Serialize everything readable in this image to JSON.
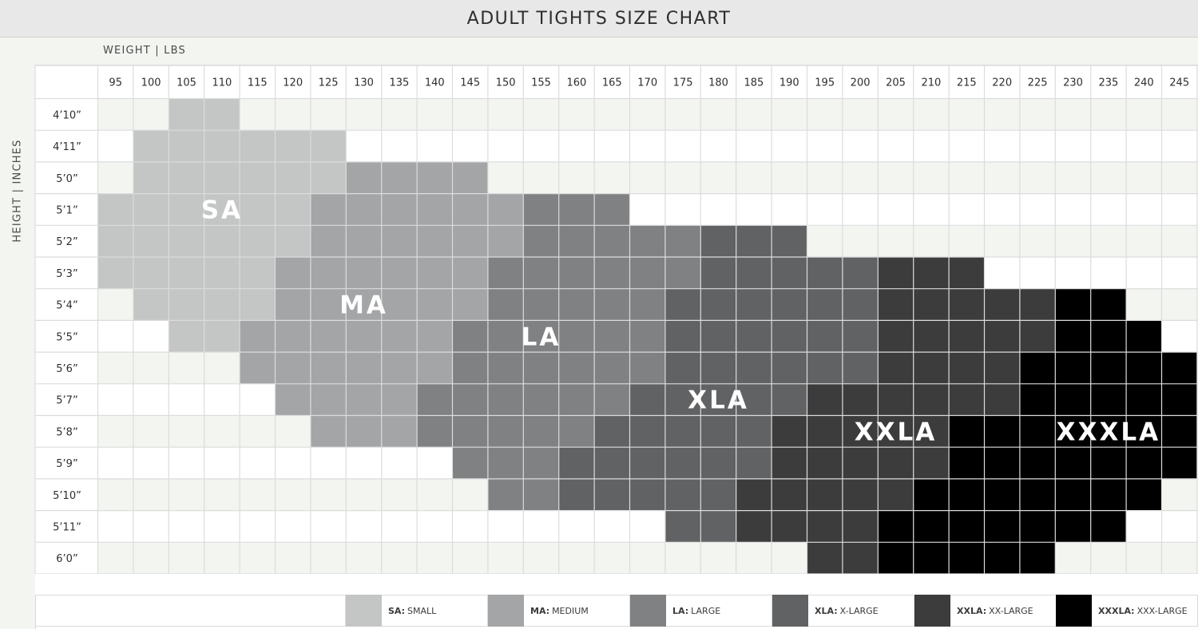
{
  "title": "ADULT TIGHTS SIZE CHART",
  "chart_data": {
    "type": "heatmap",
    "title": "ADULT TIGHTS SIZE CHART",
    "xlabel": "WEIGHT | LBS",
    "ylabel": "HEIGHT | INCHES",
    "x": [
      95,
      100,
      105,
      110,
      115,
      120,
      125,
      130,
      135,
      140,
      145,
      150,
      155,
      160,
      165,
      170,
      175,
      180,
      185,
      190,
      195,
      200,
      205,
      210,
      215,
      220,
      225,
      230,
      235,
      240,
      245
    ],
    "y": [
      "4’10”",
      "4’11”",
      "5’0”",
      "5’1”",
      "5’2”",
      "5’3”",
      "5’4”",
      "5’5”",
      "5’6”",
      "5’7”",
      "5’8”",
      "5’9”",
      "5’10”",
      "5’11”",
      "6’0”"
    ],
    "sizes": [
      {
        "code": "SA",
        "name": "SMALL",
        "color": "#c4c5c5"
      },
      {
        "code": "MA",
        "name": "MEDIUM",
        "color": "#a4a5a7"
      },
      {
        "code": "LA",
        "name": "LARGE",
        "color": "#808183"
      },
      {
        "code": "XLA",
        "name": "X-LARGE",
        "color": "#616264"
      },
      {
        "code": "XXLA",
        "name": "XX-LARGE",
        "color": "#3c3c3c"
      },
      {
        "code": "XXXLA",
        "name": "XXX-LARGE",
        "color": "#000000"
      }
    ],
    "ranges": [
      [
        [
          0,
          105,
          110
        ]
      ],
      [
        [
          0,
          100,
          125
        ]
      ],
      [
        [
          0,
          100,
          125
        ],
        [
          1,
          130,
          145
        ]
      ],
      [
        [
          0,
          95,
          120
        ],
        [
          1,
          125,
          150
        ],
        [
          2,
          155,
          165
        ]
      ],
      [
        [
          0,
          95,
          120
        ],
        [
          1,
          125,
          150
        ],
        [
          2,
          155,
          175
        ],
        [
          3,
          180,
          190
        ]
      ],
      [
        [
          0,
          95,
          95
        ],
        [
          0,
          100,
          115
        ],
        [
          1,
          120,
          145
        ],
        [
          2,
          150,
          175
        ],
        [
          3,
          180,
          200
        ],
        [
          4,
          205,
          215
        ]
      ],
      [
        [
          0,
          100,
          115
        ],
        [
          1,
          120,
          145
        ],
        [
          2,
          150,
          170
        ],
        [
          3,
          175,
          200
        ],
        [
          4,
          205,
          225
        ],
        [
          5,
          230,
          235
        ]
      ],
      [
        [
          0,
          105,
          110
        ],
        [
          1,
          115,
          140
        ],
        [
          2,
          145,
          170
        ],
        [
          3,
          175,
          200
        ],
        [
          4,
          205,
          225
        ],
        [
          5,
          230,
          240
        ]
      ],
      [
        [
          1,
          115,
          140
        ],
        [
          2,
          145,
          170
        ],
        [
          3,
          175,
          200
        ],
        [
          4,
          205,
          220
        ],
        [
          5,
          225,
          245
        ]
      ],
      [
        [
          1,
          120,
          135
        ],
        [
          2,
          140,
          165
        ],
        [
          3,
          170,
          190
        ],
        [
          4,
          195,
          220
        ],
        [
          5,
          225,
          245
        ]
      ],
      [
        [
          1,
          125,
          135
        ],
        [
          2,
          140,
          160
        ],
        [
          3,
          165,
          185
        ],
        [
          4,
          190,
          210
        ],
        [
          5,
          215,
          245
        ]
      ],
      [
        [
          2,
          145,
          155
        ],
        [
          3,
          160,
          185
        ],
        [
          4,
          190,
          210
        ],
        [
          5,
          215,
          245
        ]
      ],
      [
        [
          2,
          150,
          155
        ],
        [
          3,
          160,
          180
        ],
        [
          4,
          185,
          205
        ],
        [
          5,
          210,
          240
        ]
      ],
      [
        [
          3,
          175,
          180
        ],
        [
          4,
          185,
          200
        ],
        [
          5,
          205,
          235
        ]
      ],
      [
        [
          4,
          195,
          200
        ],
        [
          5,
          205,
          225
        ]
      ]
    ],
    "labels": [
      {
        "text": "SA",
        "x": 110,
        "y": "5’1”"
      },
      {
        "text": "MA",
        "x": 130,
        "y": "5’4”"
      },
      {
        "text": "LA",
        "x": 155,
        "y": "5’5”"
      },
      {
        "text": "XLA",
        "x": 180,
        "y": "5’7”"
      },
      {
        "text": "XXLA",
        "x": 205,
        "y": "5’8”"
      },
      {
        "text": "XXXLA",
        "x": 235,
        "y": "5’8”"
      }
    ]
  }
}
